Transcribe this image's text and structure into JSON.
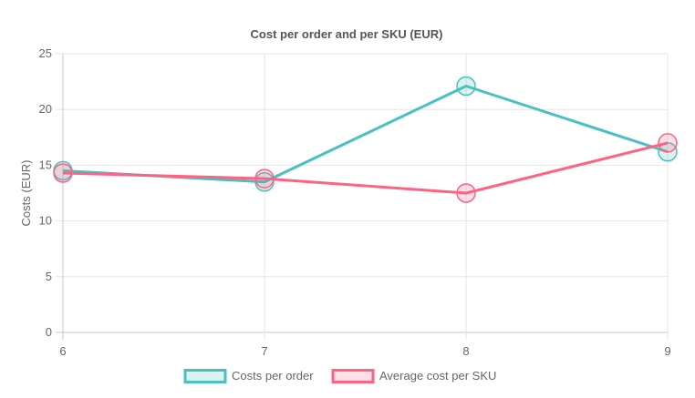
{
  "chart_data": {
    "type": "line",
    "title": "Cost per order and per SKU (EUR)",
    "xlabel": "",
    "ylabel": "Costs (EUR)",
    "x": [
      6,
      7,
      8,
      9
    ],
    "x_ticks": [
      "6",
      "7",
      "8",
      "9"
    ],
    "ylim": [
      0,
      25
    ],
    "y_ticks": [
      "0",
      "5",
      "10",
      "15",
      "20",
      "25"
    ],
    "grid": true,
    "legend_position": "bottom",
    "series": [
      {
        "name": "Costs per order",
        "values": [
          14.5,
          13.5,
          22.1,
          16.2
        ],
        "color": "#4bc0c0",
        "fill": "rgba(75,192,192,0.2)"
      },
      {
        "name": "Average cost per SKU",
        "values": [
          14.3,
          13.8,
          12.5,
          17.0
        ],
        "color": "#ff6384",
        "fill": "rgba(255,99,132,0.2)"
      }
    ]
  }
}
